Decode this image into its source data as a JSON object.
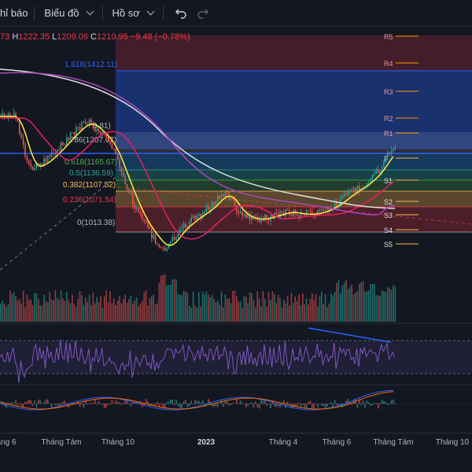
{
  "toolbar": {
    "indicators_label": "hỉ báo",
    "chart_label": "Biểu đồ",
    "profile_label": "Hồ sơ"
  },
  "ohlc": {
    "open_partial": "73",
    "h_key": "H",
    "h_val": "1222.35",
    "l_key": "L",
    "l_val": "1209.06",
    "c_key": "C",
    "c_val": "1210.95",
    "change": "−9.48 (−0.78%)"
  },
  "fib_levels": [
    {
      "label": "1.618(1412.11)",
      "color": "#2962ff"
    },
    {
      "label": ".786(1207.07)",
      "color": "#b2b5be"
    },
    {
      "label": "0.618(1165.67)",
      "color": "#4caf50"
    },
    {
      "label": "0.5(1136.59)",
      "color": "#26a69a"
    },
    {
      "label": "0.382(1107.52)",
      "color": "#ffb74d"
    },
    {
      "label": "0.236(1071.54)",
      "color": "#f23645"
    },
    {
      "label": "0(1013.38)",
      "color": "#b2b5be"
    }
  ],
  "fib_partial_top": "9.81)",
  "pivots": [
    "R5",
    "R4",
    "R3",
    "R2",
    "R1",
    "P",
    "S1",
    "S2",
    "S3",
    "S4",
    "S5"
  ],
  "time_axis": [
    {
      "label": "áng 6",
      "bold": false
    },
    {
      "label": "Tháng Tám",
      "bold": false
    },
    {
      "label": "Tháng 10",
      "bold": false
    },
    {
      "label": "2023",
      "bold": true
    },
    {
      "label": "Tháng 4",
      "bold": false
    },
    {
      "label": "Tháng 6",
      "bold": false
    },
    {
      "label": "Tháng Tám",
      "bold": false
    },
    {
      "label": "Tháng 10",
      "bold": false
    }
  ],
  "colors": {
    "background": "#131722",
    "up": "#26a69a",
    "down": "#ef5350",
    "ma_yellow": "#ffeb3b",
    "ma_red": "#e91e63",
    "ma_purple": "#ab47bc",
    "ma_white": "#e0e0e0",
    "rsi": "#7e57c2",
    "macd_blue": "#2962ff",
    "macd_orange": "#ff6d00"
  }
}
